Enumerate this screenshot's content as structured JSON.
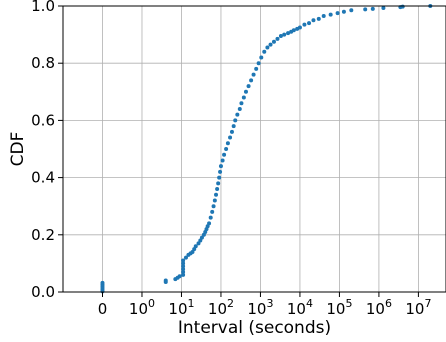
{
  "chart_data": {
    "type": "scatter",
    "title": "",
    "xlabel": "Interval (seconds)",
    "ylabel": "CDF",
    "xscale": "symlog",
    "xlim": [
      -1,
      50000000
    ],
    "ylim": [
      0.0,
      1.0
    ],
    "grid": true,
    "marker_color": "#1f77b4",
    "x_ticks": [
      {
        "value": 0,
        "base": "0",
        "exp": ""
      },
      {
        "value": 1,
        "base": "10",
        "exp": "0"
      },
      {
        "value": 10,
        "base": "10",
        "exp": "1"
      },
      {
        "value": 100,
        "base": "10",
        "exp": "2"
      },
      {
        "value": 1000,
        "base": "10",
        "exp": "3"
      },
      {
        "value": 10000,
        "base": "10",
        "exp": "4"
      },
      {
        "value": 100000,
        "base": "10",
        "exp": "5"
      },
      {
        "value": 1000000,
        "base": "10",
        "exp": "6"
      },
      {
        "value": 10000000,
        "base": "10",
        "exp": "7"
      }
    ],
    "y_ticks": [
      "0.0",
      "0.2",
      "0.4",
      "0.6",
      "0.8",
      "1.0"
    ],
    "points": [
      [
        0,
        0.002
      ],
      [
        0,
        0.008
      ],
      [
        0,
        0.014
      ],
      [
        0,
        0.02
      ],
      [
        0,
        0.026
      ],
      [
        0,
        0.032
      ],
      [
        4,
        0.035
      ],
      [
        4,
        0.04
      ],
      [
        7,
        0.045
      ],
      [
        8,
        0.05
      ],
      [
        9,
        0.055
      ],
      [
        11,
        0.06
      ],
      [
        11,
        0.07
      ],
      [
        11,
        0.08
      ],
      [
        11,
        0.09
      ],
      [
        11,
        0.1
      ],
      [
        11,
        0.11
      ],
      [
        13,
        0.12
      ],
      [
        15,
        0.13
      ],
      [
        17,
        0.135
      ],
      [
        19,
        0.14
      ],
      [
        21,
        0.15
      ],
      [
        23,
        0.16
      ],
      [
        27,
        0.17
      ],
      [
        30,
        0.18
      ],
      [
        33,
        0.19
      ],
      [
        37,
        0.2
      ],
      [
        40,
        0.21
      ],
      [
        43,
        0.22
      ],
      [
        46,
        0.23
      ],
      [
        50,
        0.24
      ],
      [
        55,
        0.26
      ],
      [
        60,
        0.28
      ],
      [
        65,
        0.3
      ],
      [
        70,
        0.32
      ],
      [
        75,
        0.34
      ],
      [
        80,
        0.36
      ],
      [
        85,
        0.38
      ],
      [
        90,
        0.4
      ],
      [
        95,
        0.42
      ],
      [
        100,
        0.44
      ],
      [
        110,
        0.46
      ],
      [
        120,
        0.48
      ],
      [
        135,
        0.5
      ],
      [
        150,
        0.52
      ],
      [
        170,
        0.54
      ],
      [
        190,
        0.56
      ],
      [
        210,
        0.58
      ],
      [
        230,
        0.6
      ],
      [
        260,
        0.62
      ],
      [
        300,
        0.64
      ],
      [
        330,
        0.66
      ],
      [
        380,
        0.68
      ],
      [
        430,
        0.7
      ],
      [
        500,
        0.72
      ],
      [
        580,
        0.74
      ],
      [
        670,
        0.76
      ],
      [
        780,
        0.78
      ],
      [
        900,
        0.8
      ],
      [
        1050,
        0.82
      ],
      [
        1250,
        0.84
      ],
      [
        1500,
        0.855
      ],
      [
        1800,
        0.865
      ],
      [
        2200,
        0.875
      ],
      [
        2700,
        0.885
      ],
      [
        3300,
        0.895
      ],
      [
        4000,
        0.9
      ],
      [
        5000,
        0.905
      ],
      [
        6000,
        0.91
      ],
      [
        7000,
        0.915
      ],
      [
        8500,
        0.92
      ],
      [
        10000,
        0.925
      ],
      [
        13000,
        0.935
      ],
      [
        17000,
        0.94
      ],
      [
        22000,
        0.95
      ],
      [
        30000,
        0.955
      ],
      [
        40000,
        0.965
      ],
      [
        60000,
        0.97
      ],
      [
        90000,
        0.975
      ],
      [
        130000,
        0.98
      ],
      [
        200000,
        0.985
      ],
      [
        450000,
        0.988
      ],
      [
        700000,
        0.99
      ],
      [
        1300000,
        0.993
      ],
      [
        3500000,
        0.996
      ],
      [
        4000000,
        0.998
      ],
      [
        20000000,
        1.0
      ]
    ]
  }
}
